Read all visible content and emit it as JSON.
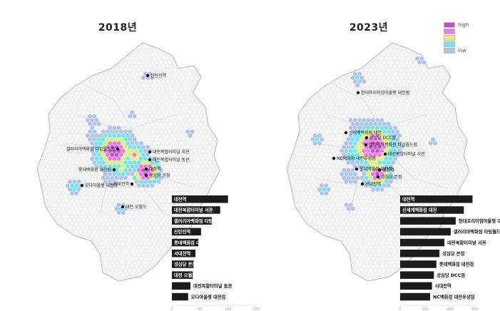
{
  "panels": [
    {
      "title": "2018년",
      "stations": [
        {
          "name": "신탄진역"
        },
        {
          "name": "갤러리아백화점 타임월드점"
        },
        {
          "name": "대전복합터미널 서관"
        },
        {
          "name": "대전복합터미널 동관"
        },
        {
          "name": "롯데백화점 대전점"
        },
        {
          "name": "대전역"
        },
        {
          "name": "성심당 본점"
        },
        {
          "name": "서대전역"
        },
        {
          "name": "모다아울렛 대전점"
        },
        {
          "name": "대전 오월드"
        }
      ],
      "ranking": [
        "대전역",
        "대전복합터미널 서관",
        "갤러리아백화점 타임월드점",
        "신탄진역",
        "롯데백화점 대전점",
        "서대전역",
        "성심당 본점",
        "대전 오월드",
        "대전복합터미널 동관",
        "모다아울렛 대전점"
      ],
      "ranking_values": [
        100,
        86,
        71,
        52,
        47,
        42,
        39,
        37,
        33,
        29
      ],
      "axis_max": 150,
      "ticks": [
        "0",
        "50",
        "100",
        "150"
      ]
    },
    {
      "title": "2023년",
      "stations": [
        {
          "name": "현대프리미엄아울렛 대전점"
        },
        {
          "name": "성심당 DCC점"
        },
        {
          "name": "신세계백화점 대전"
        },
        {
          "name": "갤러리아백화점 타임월드점"
        },
        {
          "name": "대전복합터미널 서관"
        },
        {
          "name": "NC백화점 대전유성점"
        },
        {
          "name": "롯데백화점 대전점"
        },
        {
          "name": "대전역"
        },
        {
          "name": "성심당 본점"
        },
        {
          "name": "서대전역"
        }
      ],
      "ranking": [
        "대전역",
        "신세계백화점 대전",
        "현대프리미엄아울렛 대전점",
        "갤러리아백화점 타임월드점",
        "대전복합터미널 서관",
        "성심당 본점",
        "롯데백화점 대전점",
        "성심당 DCC점",
        "서대전역",
        "NC백화점 대전유성점"
      ],
      "ranking_values": [
        580,
        510,
        445,
        405,
        355,
        315,
        290,
        270,
        255,
        240
      ],
      "axis_max": 600,
      "ticks": [
        "0",
        "200",
        "400",
        "600"
      ]
    }
  ],
  "legend": {
    "high_label": "high",
    "low_label": "low",
    "colors": [
      "#c84bd0",
      "#ea7ae2",
      "#dff07a",
      "#6fe6ee",
      "#aec4ea"
    ]
  },
  "colors": {
    "bar": "#1c1c1c",
    "map_fill": "#f4f4f4",
    "map_outline": "#b6b6b6"
  }
}
